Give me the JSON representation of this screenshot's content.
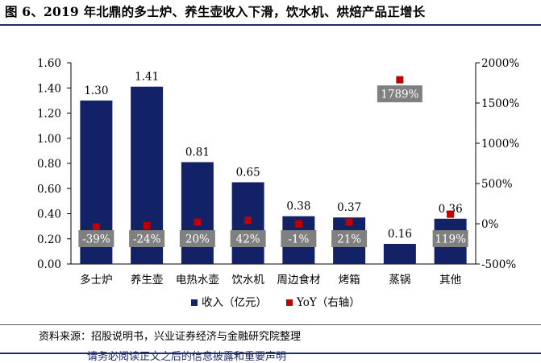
{
  "header": {
    "title": "图 6、2019 年北鼎的多士炉、养生壶收入下滑，饮水机、烘焙产品正增长"
  },
  "colors": {
    "bar": "#132166",
    "marker": "#c00000",
    "label_box": "#808080",
    "label_text": "#ffffff"
  },
  "chart_data": {
    "type": "bar",
    "categories": [
      "多士炉",
      "养生壶",
      "电热水壶",
      "饮水机",
      "周边食材",
      "烤箱",
      "蒸锅",
      "其他"
    ],
    "series": [
      {
        "name": "收入（亿元）",
        "type": "bar",
        "axis": "left",
        "values": [
          1.3,
          1.41,
          0.81,
          0.65,
          0.38,
          0.37,
          0.16,
          0.36
        ],
        "labels": [
          "1.30",
          "1.41",
          "0.81",
          "0.65",
          "0.38",
          "0.37",
          "0.16",
          "0.36"
        ]
      },
      {
        "name": "YoY（右轴）",
        "type": "scatter",
        "axis": "right",
        "values": [
          -39,
          -24,
          20,
          42,
          -1,
          21,
          1789,
          119
        ],
        "labels": [
          "-39%",
          "-24%",
          "20%",
          "42%",
          "-1%",
          "21%",
          "1789%",
          "119%"
        ]
      }
    ],
    "ylim": [
      0,
      1.6
    ],
    "yticks": [
      "0.00",
      "0.20",
      "0.40",
      "0.60",
      "0.80",
      "1.00",
      "1.20",
      "1.40",
      "1.60"
    ],
    "ylim_right": [
      -500,
      2000
    ],
    "yticks_right": [
      "-500%",
      "0%",
      "500%",
      "1000%",
      "1500%",
      "2000%"
    ],
    "legend_position": "bottom"
  },
  "footer": {
    "source": "资料来源：招股说明书，兴业证券经济与金融研究院整理",
    "disclaimer": "请务必阅读正文之后的信息披露和重要声明"
  }
}
